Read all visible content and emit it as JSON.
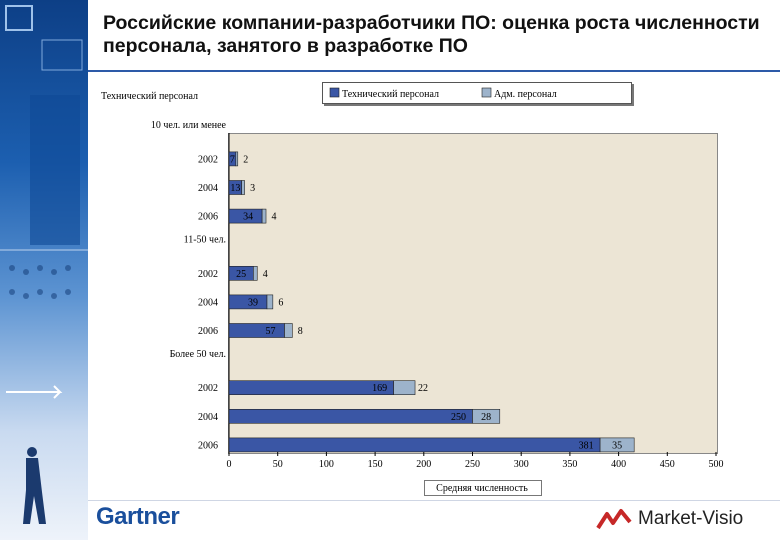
{
  "slide": {
    "title": "Российские компании-разработчики ПО: оценка роста численности персонала, занятого в разработке ПО",
    "left_series_label": "Технический персонал"
  },
  "branding": {
    "gartner": "Gartner",
    "market_visio": "Market-Visio"
  },
  "colors": {
    "tech": "#3a56a5",
    "adm": "#9db3cb",
    "plot_bg": "#ece5d5",
    "title_rule": "#2d5aa8"
  },
  "chart_data": {
    "type": "bar",
    "orientation": "horizontal",
    "stacked": true,
    "xlabel": "Средняя численность",
    "xlim": [
      0,
      500
    ],
    "xticks": [
      0,
      50,
      100,
      150,
      200,
      250,
      300,
      350,
      400,
      450,
      500
    ],
    "legend": {
      "position": "top",
      "entries": [
        "Технический персонал",
        "Адм. персонал"
      ]
    },
    "groups": [
      {
        "label": "10 чел. или менее",
        "rows": [
          {
            "year": "2002",
            "tech": 7,
            "adm": 2
          },
          {
            "year": "2004",
            "tech": 13,
            "adm": 3
          },
          {
            "year": "2006",
            "tech": 34,
            "adm": 4
          }
        ]
      },
      {
        "label": "11-50 чел.",
        "rows": [
          {
            "year": "2002",
            "tech": 25,
            "adm": 4
          },
          {
            "year": "2004",
            "tech": 39,
            "adm": 6
          },
          {
            "year": "2006",
            "tech": 57,
            "adm": 8
          }
        ]
      },
      {
        "label": "Более 50 чел.",
        "rows": [
          {
            "year": "2002",
            "tech": 169,
            "adm": 22
          },
          {
            "year": "2004",
            "tech": 250,
            "adm": 28
          },
          {
            "year": "2006",
            "tech": 381,
            "adm": 35
          }
        ]
      }
    ]
  }
}
